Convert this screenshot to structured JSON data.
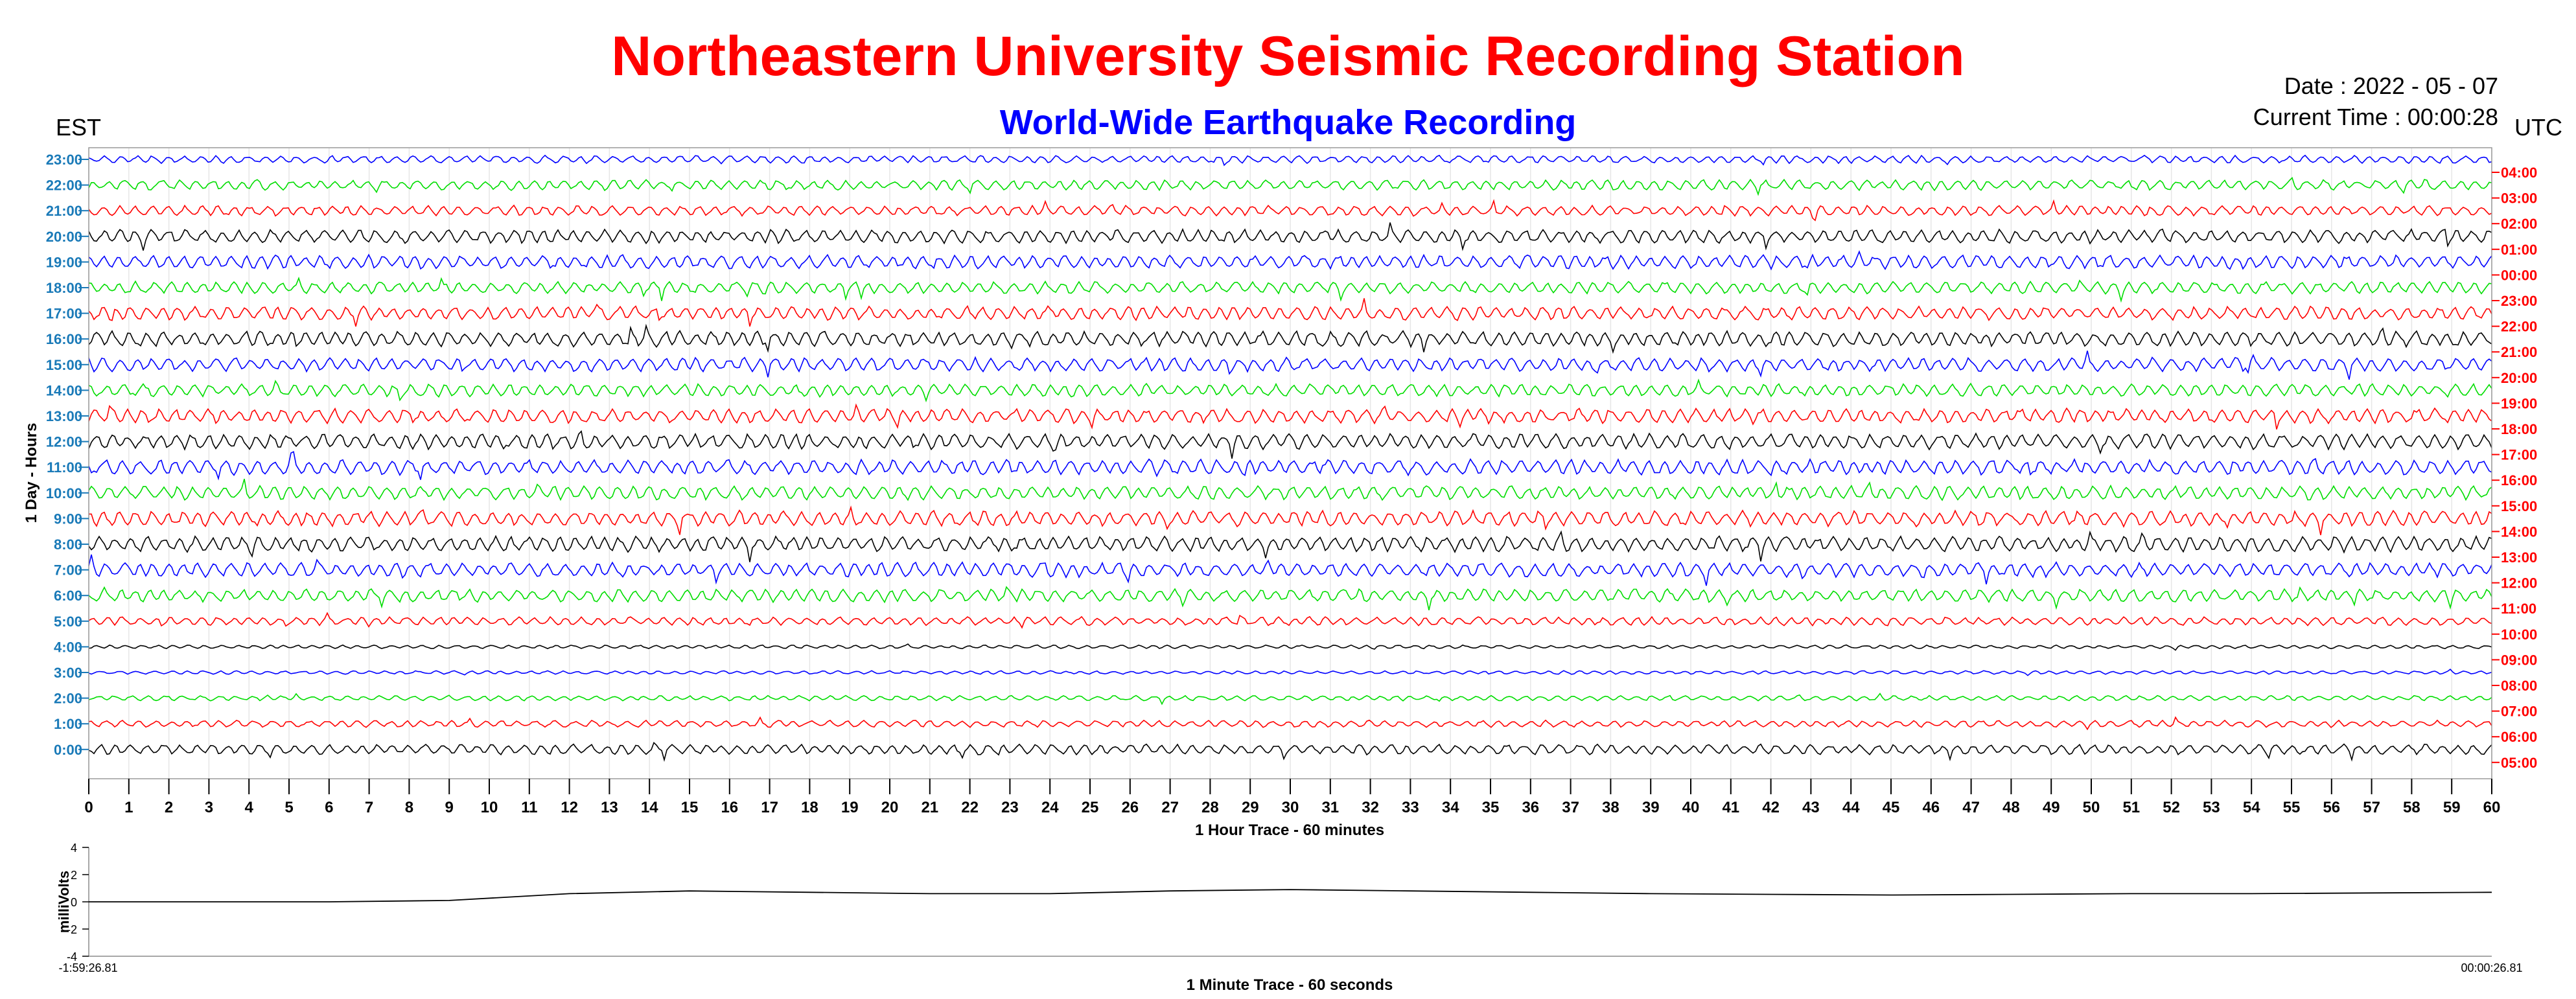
{
  "header": {
    "title": "Northeastern University Seismic Recording Station",
    "subtitle": "World-Wide Earthquake Recording",
    "left_tz": "EST",
    "right_tz": "UTC",
    "date_label": "Date : 2022 - 05 - 07",
    "time_label": "Current Time : 00:00:28"
  },
  "colors": {
    "title": "#ff0000",
    "subtitle": "#0000ff",
    "left_ticks": "#1a7ab8",
    "right_ticks": "#ff0000",
    "traces": [
      "#0000ff",
      "#00dd00",
      "#ff0000",
      "#000000"
    ]
  },
  "chart_data": [
    {
      "type": "line",
      "name": "helicorder",
      "xlabel": "1 Hour Trace - 60 minutes",
      "ylabel": "1 Day - Hours",
      "xlim": [
        0,
        60
      ],
      "x_ticks": [
        "0",
        "1",
        "2",
        "3",
        "4",
        "5",
        "6",
        "7",
        "8",
        "9",
        "10",
        "11",
        "12",
        "13",
        "14",
        "15",
        "16",
        "17",
        "18",
        "19",
        "20",
        "21",
        "22",
        "23",
        "24",
        "25",
        "26",
        "27",
        "28",
        "29",
        "30",
        "31",
        "32",
        "33",
        "34",
        "35",
        "36",
        "37",
        "38",
        "39",
        "40",
        "41",
        "42",
        "43",
        "44",
        "45",
        "46",
        "47",
        "48",
        "49",
        "50",
        "51",
        "52",
        "53",
        "54",
        "55",
        "56",
        "57",
        "58",
        "59",
        "60"
      ],
      "left_hours": [
        "23:00",
        "22:00",
        "21:00",
        "20:00",
        "19:00",
        "18:00",
        "17:00",
        "16:00",
        "15:00",
        "14:00",
        "13:00",
        "12:00",
        "11:00",
        "10:00",
        "9:00",
        "8:00",
        "7:00",
        "6:00",
        "5:00",
        "4:00",
        "3:00",
        "2:00",
        "1:00",
        "0:00"
      ],
      "right_hours": [
        "04:00",
        "03:00",
        "02:00",
        "01:00",
        "00:00",
        "23:00",
        "22:00",
        "21:00",
        "20:00",
        "19:00",
        "18:00",
        "17:00",
        "16:00",
        "15:00",
        "14:00",
        "13:00",
        "12:00",
        "11:00",
        "10:00",
        "09:00",
        "08:00",
        "07:00",
        "06:00",
        "05:00"
      ],
      "amplitude": [
        0.45,
        0.6,
        0.6,
        0.8,
        0.8,
        0.7,
        0.8,
        0.9,
        0.8,
        0.75,
        0.85,
        0.9,
        0.9,
        0.8,
        0.9,
        0.9,
        0.85,
        0.75,
        0.5,
        0.2,
        0.2,
        0.3,
        0.4,
        0.6
      ],
      "grid": true
    },
    {
      "type": "line",
      "name": "minute-trace",
      "xlabel": "1 Minute Trace  - 60 seconds",
      "ylabel": "milliVolts",
      "ylim": [
        -4,
        4
      ],
      "y_ticks": [
        "4",
        "2",
        "0",
        "-2",
        "-4"
      ],
      "x_start_label": "-1:59:26.81",
      "x_end_label": "00:00:26.81",
      "x": [
        0,
        0.05,
        0.1,
        0.15,
        0.2,
        0.25,
        0.3,
        0.35,
        0.4,
        0.45,
        0.5,
        0.55,
        0.6,
        0.65,
        0.7,
        0.75,
        0.8,
        0.85,
        0.9,
        0.95,
        1.0
      ],
      "values": [
        0,
        0,
        0,
        0.1,
        0.6,
        0.8,
        0.7,
        0.6,
        0.6,
        0.8,
        0.9,
        0.8,
        0.7,
        0.6,
        0.55,
        0.5,
        0.55,
        0.6,
        0.6,
        0.65,
        0.7
      ]
    }
  ]
}
